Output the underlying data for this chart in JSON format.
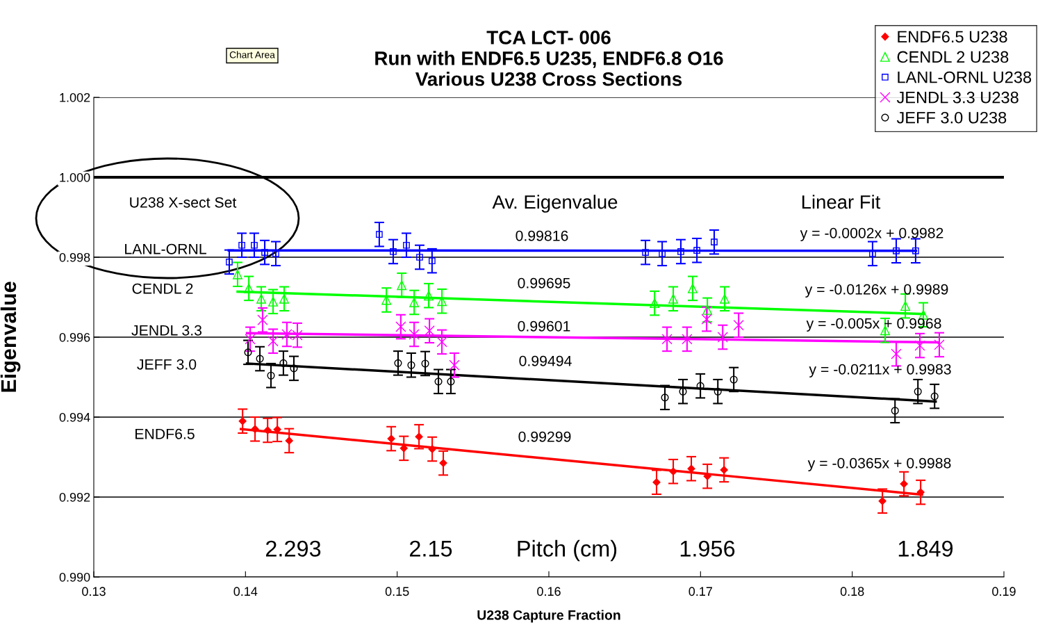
{
  "chart_data": {
    "type": "scatter",
    "title": "TCA LCT- 006\nRun with ENDF6.5 U235, ENDF6.8 O16\nVarious U238 Cross Sections",
    "xlabel": "U238 Capture Fraction",
    "ylabel": "Eigenvalue",
    "xlim": [
      0.13,
      0.19
    ],
    "xticks": [
      0.13,
      0.14,
      0.15,
      0.16,
      0.17,
      0.18,
      0.19
    ],
    "ylim": [
      0.99,
      1.002
    ],
    "yticks": [
      {
        "value": 0.99,
        "label": "0.990"
      },
      0.992,
      0.994,
      0.996,
      0.998,
      {
        "value": 1.0,
        "label": "1.000"
      },
      1.002
    ],
    "grid": "y",
    "legend": "top right",
    "ref_lines": [
      {
        "axis": "y",
        "value": 1.0,
        "color": "#000000",
        "line_style": "solid"
      }
    ],
    "series": [
      {
        "name": "ENDF6.5 U238",
        "color": "#ff0000",
        "marker": "diamond",
        "x": [
          0.13981,
          0.14063,
          0.14146,
          0.1421,
          0.14288,
          0.14961,
          0.15044,
          0.15144,
          0.15231,
          0.15304,
          0.1671,
          0.1682,
          0.16939,
          0.17045,
          0.17155,
          0.18199,
          0.18341,
          0.18451
        ],
        "values": [
          0.9939,
          0.9937,
          0.99367,
          0.99369,
          0.99341,
          0.99346,
          0.99322,
          0.99351,
          0.9932,
          0.99285,
          0.99237,
          0.99264,
          0.99271,
          0.99252,
          0.99268,
          0.9919,
          0.99233,
          0.99212
        ],
        "errors": [
          0.0003,
          0.0003,
          0.0003,
          0.0003,
          0.0003,
          0.0003,
          0.0003,
          0.0003,
          0.0003,
          0.0003,
          0.0003,
          0.0003,
          0.0003,
          0.0003,
          0.0003,
          0.0003,
          0.0003,
          0.0003
        ]
      },
      {
        "name": "CENDL 2 U238",
        "color": "#00ff00",
        "marker": "triangle",
        "x": [
          0.13948,
          0.14022,
          0.14104,
          0.14182,
          0.14255,
          0.14929,
          0.1503,
          0.15112,
          0.15208,
          0.15295,
          0.16697,
          0.1682,
          0.16948,
          0.17045,
          0.17159,
          0.18217,
          0.1835,
          0.18469
        ],
        "values": [
          0.99757,
          0.99722,
          0.99696,
          0.99689,
          0.99696,
          0.99693,
          0.9973,
          0.99687,
          0.99704,
          0.9969,
          0.99685,
          0.99696,
          0.99722,
          0.99668,
          0.99696,
          0.99617,
          0.99678,
          0.99656
        ],
        "errors": [
          0.0003,
          0.0003,
          0.0003,
          0.0003,
          0.0003,
          0.0003,
          0.0003,
          0.0003,
          0.0003,
          0.0003,
          0.0003,
          0.0003,
          0.0003,
          0.0003,
          0.0003,
          0.0003,
          0.0003,
          0.0003
        ]
      },
      {
        "name": "LANL-ORNL U238",
        "color": "#0000ff",
        "marker": "square",
        "x": [
          0.13893,
          0.13976,
          0.14058,
          0.14127,
          0.142,
          0.14882,
          0.14974,
          0.15061,
          0.15148,
          0.1523,
          0.16637,
          0.16747,
          0.1687,
          0.16976,
          0.1709,
          0.18134,
          0.1829,
          0.18418
        ],
        "values": [
          0.99788,
          0.9983,
          0.9983,
          0.99812,
          0.99809,
          0.99857,
          0.99814,
          0.9983,
          0.998,
          0.99791,
          0.99812,
          0.99809,
          0.99814,
          0.99817,
          0.99838,
          0.99809,
          0.99816,
          0.99816
        ],
        "errors": [
          0.0003,
          0.0003,
          0.0003,
          0.0003,
          0.0003,
          0.0003,
          0.0003,
          0.0003,
          0.0003,
          0.0003,
          0.0003,
          0.0003,
          0.0003,
          0.0003,
          0.0003,
          0.0003,
          0.0003,
          0.0003
        ]
      },
      {
        "name": "JENDL 3.3 U238",
        "color": "#ff00ff",
        "marker": "cross",
        "x": [
          0.14031,
          0.14113,
          0.14182,
          0.14273,
          0.14342,
          0.15024,
          0.15112,
          0.15213,
          0.15295,
          0.15377,
          0.16779,
          0.16911,
          0.1704,
          0.17146,
          0.17251,
          0.1829,
          0.18446,
          0.18574
        ],
        "values": [
          0.99595,
          0.99643,
          0.9959,
          0.99607,
          0.99605,
          0.99626,
          0.99607,
          0.99616,
          0.99588,
          0.9953,
          0.99595,
          0.99595,
          0.99645,
          0.996,
          0.9963,
          0.99558,
          0.99579,
          0.99581
        ],
        "errors": [
          0.0003,
          0.0003,
          0.0003,
          0.0003,
          0.0003,
          0.0003,
          0.0003,
          0.0003,
          0.0003,
          0.0003,
          0.0003,
          0.0003,
          0.0003,
          0.0003,
          0.0003,
          0.0003,
          0.0003,
          0.0003
        ]
      },
      {
        "name": "JEFF 3.0 U238",
        "color": "#000000",
        "marker": "circle",
        "x": [
          0.14017,
          0.14095,
          0.14168,
          0.1425,
          0.14319,
          0.15006,
          0.15093,
          0.15185,
          0.15272,
          0.15354,
          0.16765,
          0.16884,
          0.16999,
          0.17114,
          0.17219,
          0.18282,
          0.18433,
          0.18543
        ],
        "values": [
          0.99562,
          0.99546,
          0.99504,
          0.99535,
          0.99522,
          0.99535,
          0.9953,
          0.99534,
          0.99489,
          0.99489,
          0.99449,
          0.99464,
          0.99478,
          0.99464,
          0.99494,
          0.99416,
          0.99464,
          0.99452
        ],
        "errors": [
          0.0003,
          0.0003,
          0.0003,
          0.0003,
          0.0003,
          0.0003,
          0.0003,
          0.0003,
          0.0003,
          0.0003,
          0.0003,
          0.0003,
          0.0003,
          0.0003,
          0.0003,
          0.0003,
          0.0003,
          0.0003
        ]
      },
      {
        "type": "line",
        "color": "#ff0000",
        "marker": "none",
        "x": [
          0.1397,
          0.1846
        ],
        "values": [
          0.9937,
          0.99206
        ]
      },
      {
        "type": "line",
        "color": "#00ff00",
        "marker": "none",
        "x": [
          0.13948,
          0.18473
        ],
        "values": [
          0.99714,
          0.99658
        ]
      },
      {
        "type": "line",
        "color": "#0000ff",
        "marker": "none",
        "x": [
          0.1389,
          0.1842
        ],
        "values": [
          0.99817,
          0.99816
        ]
      },
      {
        "type": "line",
        "color": "#ff00ff",
        "marker": "none",
        "x": [
          0.1401,
          0.1857
        ],
        "values": [
          0.9961,
          0.99587
        ]
      },
      {
        "type": "line",
        "color": "#000000",
        "marker": "none",
        "x": [
          0.1401,
          0.1855
        ],
        "values": [
          0.99534,
          0.99439
        ]
      }
    ],
    "annotations": [
      "U238 X-sect Set",
      "Av. Eigenvalue",
      "Linear Fit",
      "LANL-ORNL",
      "CENDL 2",
      "JENDL 3.3",
      "JEFF 3.0",
      "ENDF6.5",
      "0.99816",
      "0.99695",
      "0.99601",
      "0.99494",
      "0.99299",
      "y = -0.0002x + 0.9982",
      "y = -0.0126x + 0.9989",
      "y = -0.005x + 0.9968",
      "y = -0.0211x + 0.9983",
      "y = -0.0365x + 0.9988",
      "2.293",
      "2.15",
      "Pitch (cm)",
      "1.956",
      "1.849",
      "Chart Area"
    ]
  }
}
